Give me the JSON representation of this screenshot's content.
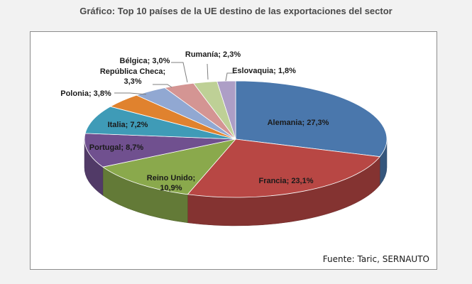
{
  "chart_data": {
    "type": "pie",
    "title": "Gráfico: Top 10 países de la UE destino de las exportaciones del sector",
    "source": "Fuente: Taric, SERNAUTO",
    "slices": [
      {
        "label": "Alemania; 27,3%",
        "name": "Alemania",
        "value": 27.3,
        "color": "#4a77ac"
      },
      {
        "label": "Francia; 23,1%",
        "name": "Francia",
        "value": 23.1,
        "color": "#b84744"
      },
      {
        "label": "Reino Unido; 10,9%",
        "name": "Reino Unido",
        "value": 10.9,
        "color": "#8aa94c"
      },
      {
        "label": "Portugal; 8,7%",
        "name": "Portugal",
        "value": 8.7,
        "color": "#70508f"
      },
      {
        "label": "Italia; 7,2%",
        "name": "Italia",
        "value": 7.2,
        "color": "#3f9bb7"
      },
      {
        "label": "Polonia; 3,8%",
        "name": "Polonia",
        "value": 3.8,
        "color": "#e0822e"
      },
      {
        "label": "República Checa; 3,3%",
        "name": "República Checa",
        "value": 3.3,
        "color": "#91a8d2"
      },
      {
        "label": "Bélgica; 3,0%",
        "name": "Bélgica",
        "value": 3.0,
        "color": "#d49593"
      },
      {
        "label": "Rumanía; 2,3%",
        "name": "Rumanía",
        "value": 2.3,
        "color": "#bed096"
      },
      {
        "label": "Eslovaquia; 1,8%",
        "name": "Eslovaquia",
        "value": 1.8,
        "color": "#ad9ec6"
      }
    ]
  }
}
